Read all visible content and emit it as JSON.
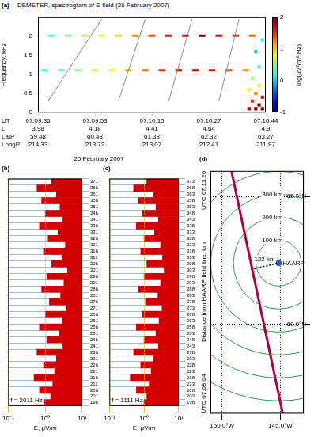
{
  "chart_data": [
    {
      "type": "spectrogram",
      "panel": "(a)",
      "title": "DEMETER, spectrogram of E-field (26 February 2007)",
      "ylabel": "Frequency, kHz",
      "xlabel": "UT",
      "xlim": [
        25776,
        25844
      ],
      "xticks": [
        {
          "value": 25776,
          "label": "07:09:36"
        },
        {
          "value": 25793,
          "label": "07:09:53"
        },
        {
          "value": 25810,
          "label": "07:10:10"
        },
        {
          "value": 25827,
          "label": "07:10:27"
        },
        {
          "value": 25844,
          "label": "07:10:44"
        }
      ],
      "ylim": [
        0,
        2.5
      ],
      "yticks": [
        0,
        0.5,
        1,
        1.5,
        2
      ],
      "rows": [
        {
          "name": "L",
          "values": [
            "3,98",
            "4,18",
            "4,41",
            "4,64",
            "4,9"
          ]
        },
        {
          "name": "LatP",
          "values": [
            "59,48",
            "60,43",
            "61,38",
            "62,32",
            "63,27"
          ]
        },
        {
          "name": "LongP",
          "values": [
            "214,33",
            "213,72",
            "213,07",
            "212,41",
            "211,87"
          ]
        }
      ],
      "colorbar": {
        "label": "log(μV²/m²/Hz)",
        "range": [
          -1,
          2
        ],
        "ticks": [
          -1,
          0,
          1,
          2
        ]
      },
      "pulses": [
        {
          "start": 25779,
          "end": 25781,
          "f": 2.011,
          "level": 0.3
        },
        {
          "start": 25784,
          "end": 25786,
          "f": 2.011,
          "level": 0.5
        },
        {
          "start": 25789,
          "end": 25791,
          "f": 2.011,
          "level": 0.6
        },
        {
          "start": 25794,
          "end": 25796,
          "f": 2.011,
          "level": 0.8
        },
        {
          "start": 25799,
          "end": 25801,
          "f": 2.011,
          "level": 1.0
        },
        {
          "start": 25804,
          "end": 25806,
          "f": 2.011,
          "level": 1.2
        },
        {
          "start": 25809,
          "end": 25811,
          "f": 2.011,
          "level": 1.4
        },
        {
          "start": 25814,
          "end": 25816,
          "f": 2.011,
          "level": 1.6
        },
        {
          "start": 25819,
          "end": 25821,
          "f": 2.011,
          "level": 1.8
        },
        {
          "start": 25824,
          "end": 25826,
          "f": 2.011,
          "level": 1.9
        },
        {
          "start": 25829,
          "end": 25831,
          "f": 2.011,
          "level": 1.7
        },
        {
          "start": 25834,
          "end": 25836,
          "f": 2.011,
          "level": 1.5
        },
        {
          "start": 25839,
          "end": 25841,
          "f": 2.011,
          "level": 1.3
        },
        {
          "start": 25777,
          "end": 25779,
          "f": 1.111,
          "level": 0.2
        },
        {
          "start": 25782,
          "end": 25784,
          "f": 1.111,
          "level": 0.4
        },
        {
          "start": 25787,
          "end": 25789,
          "f": 1.111,
          "level": 0.5
        },
        {
          "start": 25792,
          "end": 25794,
          "f": 1.111,
          "level": 0.7
        },
        {
          "start": 25797,
          "end": 25799,
          "f": 1.111,
          "level": 0.9
        },
        {
          "start": 25802,
          "end": 25804,
          "f": 1.111,
          "level": 1.1
        },
        {
          "start": 25807,
          "end": 25809,
          "f": 1.111,
          "level": 1.3
        },
        {
          "start": 25812,
          "end": 25814,
          "f": 1.111,
          "level": 1.5
        },
        {
          "start": 25817,
          "end": 25819,
          "f": 1.111,
          "level": 1.7
        },
        {
          "start": 25822,
          "end": 25824,
          "f": 1.111,
          "level": 1.8
        },
        {
          "start": 25827,
          "end": 25829,
          "f": 1.111,
          "level": 1.6
        },
        {
          "start": 25832,
          "end": 25834,
          "f": 1.111,
          "level": 1.4
        },
        {
          "start": 25837,
          "end": 25839,
          "f": 1.111,
          "level": 1.2
        }
      ],
      "sweeps": [
        {
          "t": [
            25779,
            25795
          ],
          "f": [
            0.3,
            2.45
          ]
        },
        {
          "t": [
            25800,
            25808
          ],
          "f": [
            0.3,
            2.45
          ]
        },
        {
          "t": [
            25815,
            25822
          ],
          "f": [
            0.3,
            2.45
          ]
        },
        {
          "t": [
            25830,
            25836
          ],
          "f": [
            0.3,
            2.45
          ]
        }
      ],
      "noise": [
        {
          "t": 25839,
          "f": 0.1,
          "level": 1.8
        },
        {
          "t": 25840,
          "f": 0.3,
          "level": 1.5
        },
        {
          "t": 25841,
          "f": 0.1,
          "level": 2.0
        },
        {
          "t": 25841,
          "f": 0.5,
          "level": 1.2
        },
        {
          "t": 25842,
          "f": 0.2,
          "level": 1.9
        },
        {
          "t": 25842,
          "f": 0.7,
          "level": 0.9
        },
        {
          "t": 25843,
          "f": 0.4,
          "level": 1.6
        },
        {
          "t": 25843,
          "f": 0.1,
          "level": 2.0
        },
        {
          "t": 25840,
          "f": 0.9,
          "level": 0.6
        },
        {
          "t": 25842,
          "f": 1.2,
          "level": 0.3
        },
        {
          "t": 25841,
          "f": 1.6,
          "level": 0.0
        },
        {
          "t": 25843,
          "f": 1.9,
          "level": 0.2
        },
        {
          "t": 25839,
          "f": 0.6,
          "level": 0.8
        }
      ]
    },
    {
      "type": "bar",
      "panel": "(b)",
      "title": "26 February 2007",
      "orientation": "horizontal",
      "log": "x",
      "xlabel": "E, μV/m",
      "annotation": "f = 2011 Hz",
      "color": "#d40000",
      "grid": true,
      "xlim": [
        0.1,
        10
      ],
      "xticks": [
        {
          "value": 0.1,
          "label": "10⁻¹"
        },
        {
          "value": 1,
          "label": "10⁰"
        },
        {
          "value": 10,
          "label": "10¹"
        }
      ],
      "categories": [
        "371",
        "366",
        "361",
        "356",
        "351",
        "346",
        "341",
        "336",
        "331",
        "326",
        "321",
        "316",
        "311",
        "306",
        "301",
        "296",
        "291",
        "286",
        "281",
        "276",
        "271",
        "266",
        "261",
        "256",
        "251",
        "246",
        "241",
        "236",
        "231",
        "226",
        "221",
        "216",
        "211",
        "206",
        "201",
        "196"
      ],
      "values": [
        1.5,
        0.6,
        2.0,
        0.8,
        2.5,
        1.0,
        3.0,
        0.7,
        2.2,
        1.2,
        3.5,
        0.9,
        2.8,
        1.5,
        4.0,
        1.1,
        3.2,
        0.8,
        2.6,
        1.3,
        3.8,
        1.0,
        2.9,
        0.7,
        2.4,
        1.1,
        3.0,
        0.6,
        2.0,
        0.9,
        1.8,
        0.5,
        1.6,
        0.7,
        1.4,
        0.5
      ]
    },
    {
      "type": "bar",
      "panel": "(c)",
      "orientation": "horizontal",
      "log": "x",
      "xlabel": "E, μV/m",
      "annotation": "f = 1111 Hz",
      "color": "#d40000",
      "grid": true,
      "xlim": [
        0.1,
        10
      ],
      "xticks": [
        {
          "value": 0.1,
          "label": "10⁻¹"
        },
        {
          "value": 1,
          "label": "10⁰"
        },
        {
          "value": 10,
          "label": "10¹"
        }
      ],
      "categories": [
        "373",
        "368",
        "363",
        "358",
        "353",
        "348",
        "343",
        "338",
        "333",
        "328",
        "323",
        "318",
        "313",
        "308",
        "303",
        "298",
        "293",
        "288",
        "283",
        "278",
        "273",
        "268",
        "263",
        "258",
        "253",
        "248",
        "243",
        "238",
        "233",
        "228",
        "223",
        "218",
        "213",
        "208",
        "203",
        "198"
      ],
      "values": [
        1.2,
        0.5,
        1.8,
        0.7,
        2.2,
        0.9,
        2.6,
        0.6,
        2.0,
        1.0,
        3.0,
        0.8,
        3.4,
        1.2,
        3.8,
        1.0,
        3.0,
        0.7,
        2.5,
        1.1,
        3.3,
        0.9,
        2.7,
        0.6,
        2.2,
        1.0,
        2.6,
        0.5,
        1.9,
        0.8,
        1.6,
        0.4,
        1.4,
        0.6,
        1.2,
        0.4
      ]
    },
    {
      "type": "map",
      "panel": "(d)",
      "ylabel": "Distance from HAARP field line, km",
      "grid": true,
      "xlim": [
        -151,
        -143
      ],
      "ylim": [
        56.5,
        66
      ],
      "xticks": [
        {
          "value": -150,
          "label": "150.0°W"
        },
        {
          "value": -145,
          "label": "145.0°W"
        }
      ],
      "yticks": [
        {
          "value": 60,
          "label": "60.0°N"
        },
        {
          "value": 65,
          "label": "65.0°N"
        }
      ],
      "track": {
        "lon": [
          -149.2,
          -144.8
        ],
        "lat": [
          66,
          56.5
        ],
        "color": "#b0003a",
        "start_label": "UTC 07:11:20",
        "end_label": "UTC 07:08:04"
      },
      "site": {
        "name": "HAARP",
        "lon": -145.15,
        "lat": 62.39,
        "color": "#1f5fbf"
      },
      "closest": {
        "lon": -147.55,
        "lat": 62.14,
        "label": "122 km",
        "line_style": "dotted"
      },
      "circles": {
        "color": "#2e9e4f",
        "rings": [
          {
            "radius_km": 100,
            "label": "100 km"
          },
          {
            "radius_km": 200,
            "label": "200 km"
          },
          {
            "radius_km": 300,
            "label": "300 km"
          },
          {
            "radius_km": 400
          },
          {
            "radius_km": 500
          },
          {
            "radius_km": 600
          }
        ]
      }
    }
  ]
}
